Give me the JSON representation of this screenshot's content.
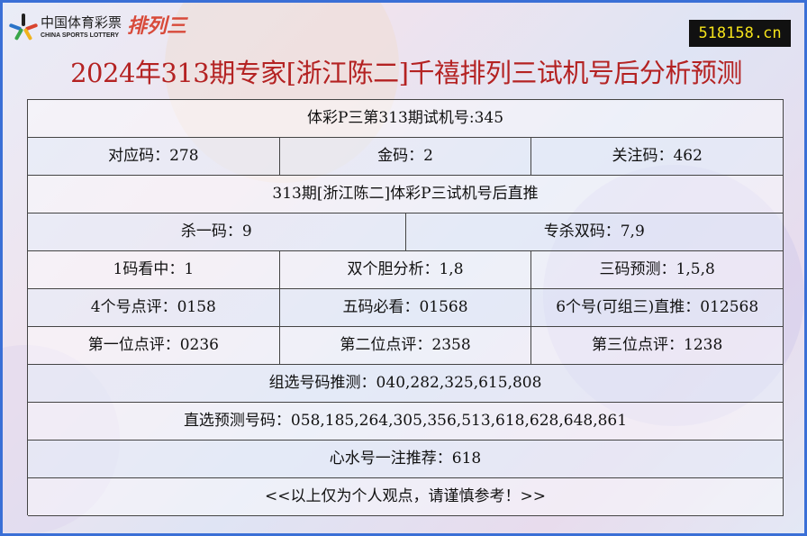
{
  "header": {
    "logo_cn": "中国体育彩票",
    "logo_en": "CHINA SPORTS LOTTERY",
    "logo_game": "排列三",
    "site": "518158.cn",
    "title": "2024年313期专家[浙江陈二]千禧排列三试机号后分析预测"
  },
  "colors": {
    "border": "#3a6fd6",
    "title": "#b42222",
    "site_bg": "#111111",
    "site_text": "#f4e21a"
  },
  "table": {
    "test_number": "体彩P三第313期试机号:345",
    "row2": [
      "对应码：278",
      "金码：2",
      "关注码：462"
    ],
    "subtitle": "313期[浙江陈二]体彩P三试机号后直推",
    "row4": [
      "杀一码：9",
      "专杀双码：7,9"
    ],
    "row5": [
      "1码看中：1",
      "双个胆分析：1,8",
      "三码预测：1,5,8"
    ],
    "row6": [
      "4个号点评：0158",
      "五码必看：01568",
      "6个号(可组三)直推：012568"
    ],
    "row7": [
      "第一位点评：0236",
      "第二位点评：2358",
      "第三位点评：1238"
    ],
    "group": "组选号码推测：040,282,325,615,808",
    "direct": "直选预测号码：058,185,264,305,356,513,618,628,648,861",
    "recommend": "心水号一注推荐：618",
    "disclaimer": "<<以上仅为个人观点，请谨慎参考！>>"
  }
}
